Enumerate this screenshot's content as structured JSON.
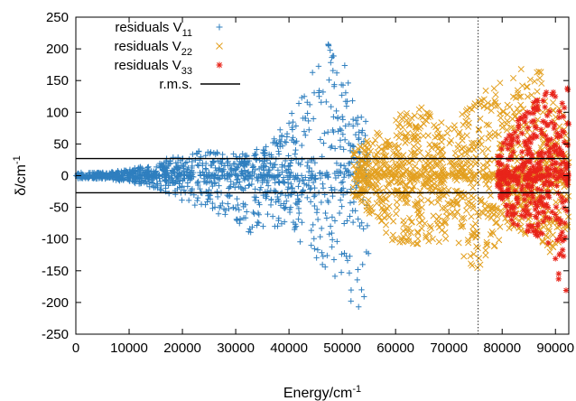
{
  "chart_data": {
    "type": "scatter",
    "title": "",
    "xlabel": "Energy/cm",
    "xlabel_exponent": "-1",
    "ylabel": "δ/cm",
    "ylabel_exponent": "-1",
    "xlim": [
      0,
      92500
    ],
    "ylim": [
      -250,
      250
    ],
    "x_ticks": [
      0,
      10000,
      20000,
      30000,
      40000,
      50000,
      60000,
      70000,
      80000,
      90000
    ],
    "y_ticks": [
      -250,
      -200,
      -150,
      -100,
      -50,
      0,
      50,
      100,
      150,
      200,
      250
    ],
    "grid": false,
    "legend_position": "top-left",
    "rms": 27,
    "vertical_marker_x": 75500,
    "series": [
      {
        "name": "residuals V",
        "name_subscript": "11",
        "marker": "plus",
        "color": "#2f7fbf",
        "x_range": [
          0,
          55000
        ],
        "envelope": [
          [
            0,
            5
          ],
          [
            5000,
            5
          ],
          [
            10000,
            10
          ],
          [
            15000,
            20
          ],
          [
            20000,
            40
          ],
          [
            25000,
            40
          ],
          [
            30000,
            35
          ],
          [
            35000,
            45
          ],
          [
            40000,
            90
          ],
          [
            45000,
            180
          ],
          [
            48000,
            215
          ],
          [
            50000,
            200
          ],
          [
            52000,
            120
          ],
          [
            55000,
            80
          ]
        ],
        "lower_envelope": [
          [
            0,
            -5
          ],
          [
            5000,
            -5
          ],
          [
            10000,
            -10
          ],
          [
            15000,
            -20
          ],
          [
            20000,
            -40
          ],
          [
            25000,
            -55
          ],
          [
            30000,
            -70
          ],
          [
            33000,
            -95
          ],
          [
            36000,
            -80
          ],
          [
            40000,
            -80
          ],
          [
            45000,
            -140
          ],
          [
            50000,
            -200
          ],
          [
            52000,
            -230
          ],
          [
            55000,
            -180
          ]
        ]
      },
      {
        "name": "residuals V",
        "name_subscript": "22",
        "marker": "x",
        "color": "#e3a020",
        "x_range": [
          52000,
          92500
        ],
        "envelope": [
          [
            52000,
            40
          ],
          [
            55000,
            60
          ],
          [
            60000,
            100
          ],
          [
            65000,
            110
          ],
          [
            70000,
            85
          ],
          [
            73000,
            100
          ],
          [
            76000,
            130
          ],
          [
            80000,
            150
          ],
          [
            85000,
            180
          ],
          [
            88000,
            160
          ],
          [
            90000,
            120
          ],
          [
            92500,
            110
          ]
        ],
        "lower_envelope": [
          [
            52000,
            -30
          ],
          [
            55000,
            -60
          ],
          [
            60000,
            -110
          ],
          [
            65000,
            -120
          ],
          [
            70000,
            -100
          ],
          [
            73000,
            -130
          ],
          [
            75000,
            -150
          ],
          [
            78000,
            -120
          ],
          [
            82000,
            -80
          ],
          [
            86000,
            -100
          ],
          [
            90000,
            -150
          ],
          [
            92500,
            -100
          ]
        ]
      },
      {
        "name": "residuals V",
        "name_subscript": "33",
        "marker": "asterisk",
        "color": "#e8241a",
        "x_range": [
          79000,
          92500
        ],
        "envelope": [
          [
            79000,
            40
          ],
          [
            82000,
            80
          ],
          [
            85000,
            110
          ],
          [
            88000,
            130
          ],
          [
            90000,
            140
          ],
          [
            92500,
            140
          ]
        ],
        "lower_envelope": [
          [
            79000,
            -30
          ],
          [
            82000,
            -80
          ],
          [
            85000,
            -90
          ],
          [
            88000,
            -100
          ],
          [
            90000,
            -175
          ],
          [
            92500,
            -190
          ]
        ]
      }
    ],
    "legend": {
      "items": [
        {
          "label": "residuals V",
          "subscript": "11",
          "marker": "plus",
          "color": "#2f7fbf"
        },
        {
          "label": "residuals V",
          "subscript": "22",
          "marker": "x",
          "color": "#e3a020"
        },
        {
          "label": "residuals V",
          "subscript": "33",
          "marker": "asterisk",
          "color": "#e8241a"
        },
        {
          "label": "r.m.s.",
          "subscript": "",
          "marker": "line",
          "color": "#000000"
        }
      ]
    }
  }
}
